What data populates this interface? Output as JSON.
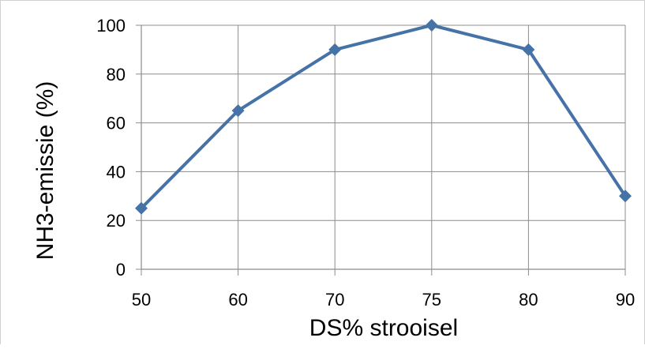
{
  "chart_data": {
    "type": "line",
    "title": "",
    "xlabel": "DS% strooisel",
    "ylabel": "NH3-emissie (%)",
    "categories": [
      "50",
      "60",
      "70",
      "75",
      "80",
      "90"
    ],
    "series": [
      {
        "values": [
          25,
          65,
          90,
          100,
          90,
          30
        ],
        "color": "#4573a7",
        "marker": "diamond"
      }
    ],
    "ylim": [
      0,
      100
    ],
    "yticks": [
      "0",
      "20",
      "40",
      "60",
      "80",
      "100"
    ],
    "grid": true,
    "legend": "none",
    "colors": {
      "series": "#4573a7",
      "grid": "#8c8c8c",
      "axis": "#8c8c8c"
    }
  }
}
